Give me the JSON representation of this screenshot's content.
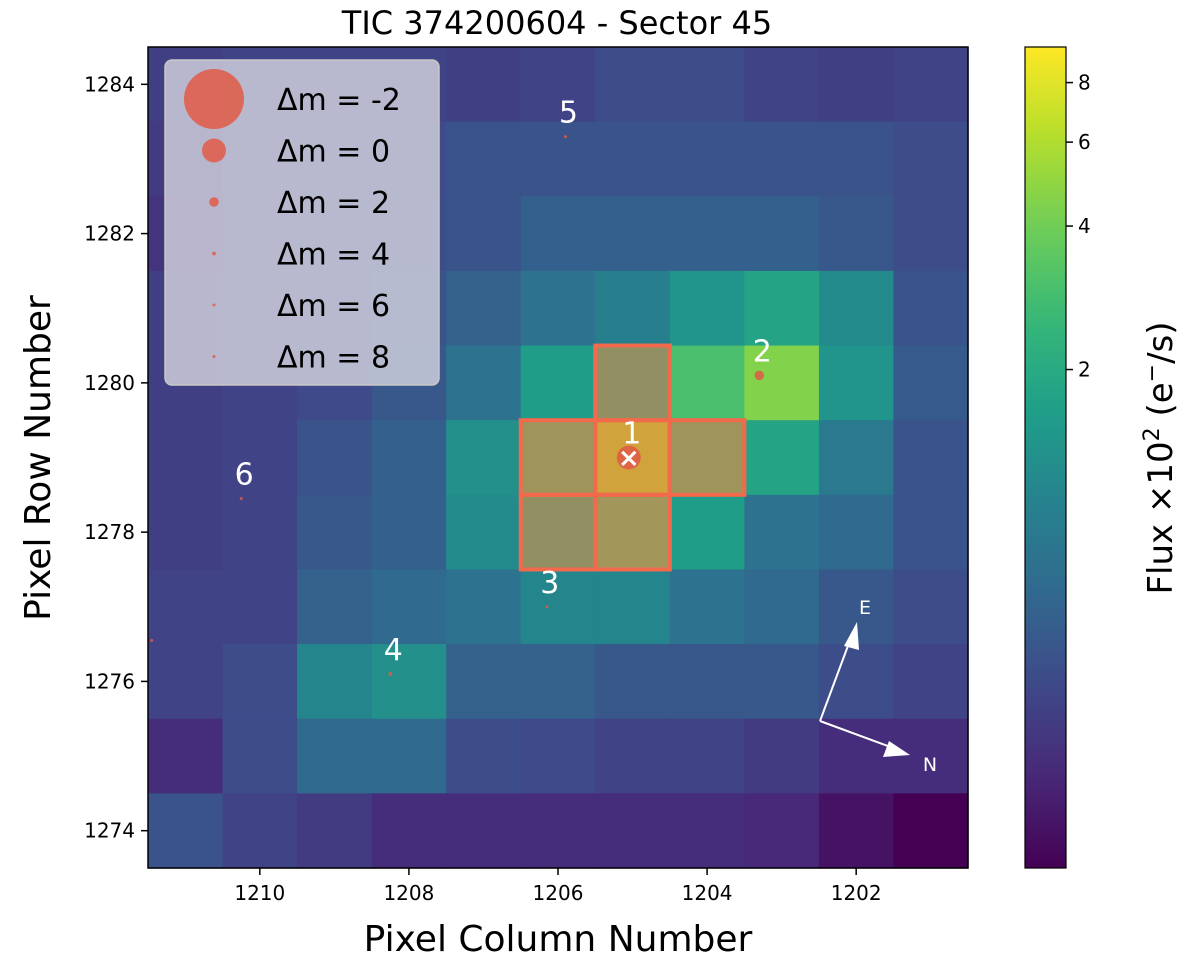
{
  "chart_data": {
    "type": "heatmap",
    "title": "TIC 374200604 - Sector 45",
    "xlabel": "Pixel Column Number",
    "ylabel": "Pixel Row Number",
    "x_reversed": true,
    "x_range": [
      1211.5,
      1200.5
    ],
    "y_range": [
      1273.5,
      1284.5
    ],
    "x_ticks": [
      1210,
      1208,
      1206,
      1204,
      1202
    ],
    "y_ticks": [
      1274,
      1276,
      1278,
      1280,
      1282,
      1284
    ],
    "columns": [
      1211,
      1210,
      1209,
      1208,
      1207,
      1206,
      1205,
      1204,
      1203,
      1202,
      1201
    ],
    "rows": [
      1284,
      1283,
      1282,
      1281,
      1280,
      1279,
      1278,
      1277,
      1276,
      1275,
      1274
    ],
    "flux_e_per_s_x100": [
      [
        0.38,
        0.4,
        0.4,
        0.4,
        0.38,
        0.4,
        0.46,
        0.46,
        0.4,
        0.38,
        0.4
      ],
      [
        0.36,
        0.4,
        0.44,
        0.44,
        0.5,
        0.5,
        0.5,
        0.5,
        0.5,
        0.5,
        0.46
      ],
      [
        0.33,
        0.4,
        0.44,
        0.46,
        0.5,
        0.6,
        0.6,
        0.6,
        0.6,
        0.54,
        0.46
      ],
      [
        0.38,
        0.4,
        0.44,
        0.5,
        0.62,
        0.8,
        1.0,
        1.4,
        1.8,
        1.2,
        0.5
      ],
      [
        0.38,
        0.4,
        0.44,
        0.54,
        0.8,
        1.6,
        2.4,
        3.0,
        4.5,
        1.4,
        0.55
      ],
      [
        0.38,
        0.4,
        0.5,
        0.6,
        1.3,
        3.0,
        6.0,
        3.0,
        1.8,
        0.9,
        0.5
      ],
      [
        0.38,
        0.4,
        0.54,
        0.6,
        1.2,
        2.4,
        3.2,
        1.6,
        0.8,
        0.7,
        0.5
      ],
      [
        0.4,
        0.4,
        0.62,
        0.7,
        0.8,
        1.1,
        1.1,
        0.8,
        0.7,
        0.54,
        0.46
      ],
      [
        0.4,
        0.46,
        1.1,
        1.3,
        0.62,
        0.62,
        0.54,
        0.54,
        0.54,
        0.46,
        0.4
      ],
      [
        0.3,
        0.46,
        0.7,
        0.7,
        0.46,
        0.44,
        0.4,
        0.4,
        0.36,
        0.3,
        0.3
      ],
      [
        0.5,
        0.4,
        0.36,
        0.3,
        0.3,
        0.3,
        0.3,
        0.3,
        0.28,
        0.22,
        0.18
      ]
    ],
    "aperture_pixels": [
      [
        1205,
        1280
      ],
      [
        1206,
        1279
      ],
      [
        1205,
        1279
      ],
      [
        1204,
        1279
      ],
      [
        1206,
        1278
      ],
      [
        1205,
        1278
      ]
    ],
    "stars": [
      {
        "label": "1",
        "col": 1205.05,
        "row": 1279.0,
        "dm": 0
      },
      {
        "label": "2",
        "col": 1203.3,
        "row": 1280.1,
        "dm": 2
      },
      {
        "label": "3",
        "col": 1206.15,
        "row": 1277.0,
        "dm": 8
      },
      {
        "label": "4",
        "col": 1208.25,
        "row": 1276.1,
        "dm": 4
      },
      {
        "label": "5",
        "col": 1205.9,
        "row": 1283.3,
        "dm": 8
      },
      {
        "label": "6",
        "col": 1210.25,
        "row": 1278.45,
        "dm": 8
      },
      {
        "label": "",
        "col": 1211.45,
        "row": 1276.55,
        "dm": 8
      }
    ],
    "target_marker": "×",
    "legend": {
      "placement": "upper-left",
      "symbol": "Δm =",
      "entries": [
        "-2",
        "0",
        "2",
        "4",
        "6",
        "8"
      ],
      "dm_values": [
        -2,
        0,
        2,
        4,
        6,
        8
      ]
    },
    "compass": {
      "east": "E",
      "north": "N"
    },
    "colorbar": {
      "colormap": "viridis",
      "scale": "log",
      "range": [
        0.18,
        9.5
      ],
      "ticks": [
        "2",
        "4",
        "6",
        "8"
      ],
      "tick_values": [
        2,
        4,
        6,
        8
      ],
      "label_main": "Flux ×10",
      "label_exp": "2",
      "label_unit": " (e",
      "label_unit_sup": "−",
      "label_unit_end": "/s)"
    },
    "grid": false
  },
  "colors": {
    "aperture": "#f26a4b",
    "star": "#e05a45",
    "legend_bg": "#d6d6e0",
    "annotation": "#ffffff"
  }
}
